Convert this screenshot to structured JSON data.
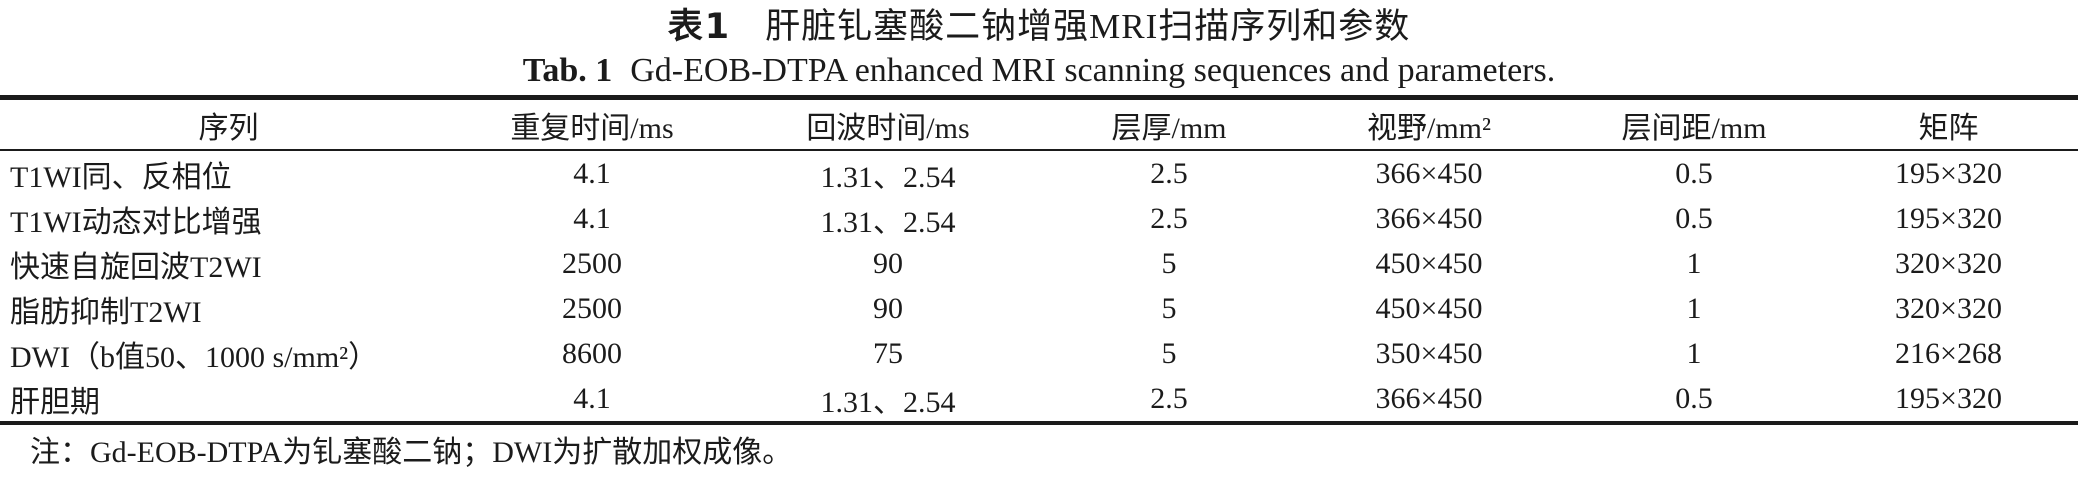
{
  "caption": {
    "zh_label": "表1",
    "zh_title": "肝脏钆塞酸二钠增强MRI扫描序列和参数",
    "en_label": "Tab. 1",
    "en_title": "Gd-EOB-DTPA enhanced MRI scanning sequences and parameters."
  },
  "table": {
    "columns": [
      "序列",
      "重复时间/ms",
      "回波时间/ms",
      "层厚/mm",
      "视野/mm²",
      "层间距/mm",
      "矩阵"
    ],
    "rows": [
      [
        "T1WI同、反相位",
        "4.1",
        "1.31、2.54",
        "2.5",
        "366×450",
        "0.5",
        "195×320"
      ],
      [
        "T1WI动态对比增强",
        "4.1",
        "1.31、2.54",
        "2.5",
        "366×450",
        "0.5",
        "195×320"
      ],
      [
        "快速自旋回波T2WI",
        "2500",
        "90",
        "5",
        "450×450",
        "1",
        "320×320"
      ],
      [
        "脂肪抑制T2WI",
        "2500",
        "90",
        "5",
        "450×450",
        "1",
        "320×320"
      ],
      [
        "DWI（b值50、1000 s/mm²）",
        "8600",
        "75",
        "5",
        "350×450",
        "1",
        "216×268"
      ],
      [
        "肝胆期",
        "4.1",
        "1.31、2.54",
        "2.5",
        "366×450",
        "0.5",
        "195×320"
      ]
    ]
  },
  "note": "注：Gd-EOB-DTPA为钆塞酸二钠；DWI为扩散加权成像。",
  "colors": {
    "text": "#1b1b1b",
    "rule": "#1b1b1b",
    "background": "#ffffff"
  }
}
